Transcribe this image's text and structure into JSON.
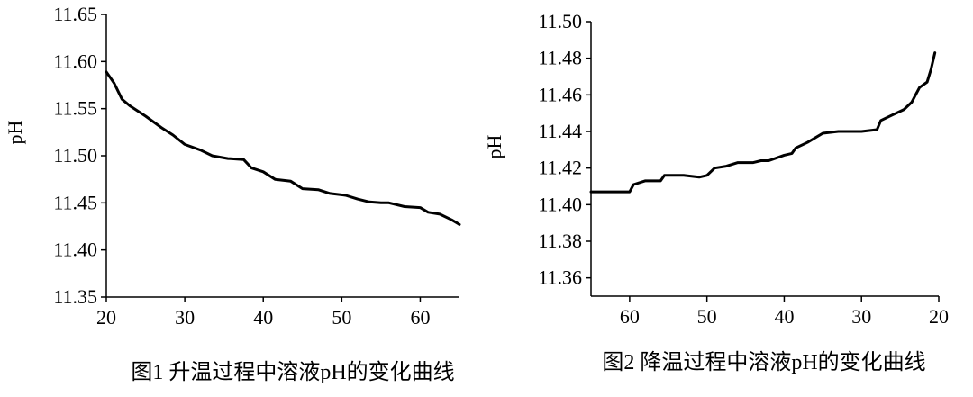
{
  "chart_data": [
    {
      "type": "line",
      "title": "图1 升温过程中溶液pH的变化曲线",
      "xlabel": "",
      "ylabel": "pH",
      "xlim": [
        20,
        65
      ],
      "ylim": [
        11.35,
        11.65
      ],
      "x_ticks": [
        "20",
        "30",
        "40",
        "50",
        "60"
      ],
      "x_tick_values": [
        20,
        30,
        40,
        50,
        60
      ],
      "y_ticks": [
        "11.35",
        "11.40",
        "11.45",
        "11.50",
        "11.55",
        "11.60",
        "11.65"
      ],
      "y_tick_values": [
        11.35,
        11.4,
        11.45,
        11.5,
        11.55,
        11.6,
        11.65
      ],
      "x_reversed": false,
      "grid": false,
      "series": [
        {
          "x": [
            20,
            21,
            22,
            23,
            25,
            27,
            28.5,
            30,
            32,
            33.5,
            35.5,
            37.5,
            38.5,
            40,
            41.5,
            43.5,
            45,
            47,
            48.5,
            50.5,
            52,
            53.5,
            55,
            56,
            58,
            60,
            61,
            62.5,
            64,
            65
          ],
          "y": [
            11.589,
            11.577,
            11.56,
            11.553,
            11.542,
            11.53,
            11.522,
            11.512,
            11.506,
            11.5,
            11.497,
            11.496,
            11.487,
            11.483,
            11.475,
            11.473,
            11.465,
            11.464,
            11.46,
            11.458,
            11.454,
            11.451,
            11.45,
            11.45,
            11.446,
            11.445,
            11.44,
            11.438,
            11.432,
            11.427
          ]
        }
      ]
    },
    {
      "type": "line",
      "title": "图2 降温过程中溶液pH的变化曲线",
      "xlabel": "",
      "ylabel": "pH",
      "xlim": [
        65,
        20
      ],
      "ylim": [
        11.35,
        11.5
      ],
      "x_ticks": [
        "60",
        "50",
        "40",
        "30",
        "20"
      ],
      "x_tick_values": [
        60,
        50,
        40,
        30,
        20
      ],
      "y_ticks": [
        "11.36",
        "11.38",
        "11.40",
        "11.42",
        "11.44",
        "11.46",
        "11.48",
        "11.50"
      ],
      "y_tick_values": [
        11.36,
        11.38,
        11.4,
        11.42,
        11.44,
        11.46,
        11.48,
        11.5
      ],
      "x_reversed": true,
      "grid": false,
      "series": [
        {
          "x": [
            65,
            62,
            60,
            59.5,
            58,
            56,
            55.5,
            53,
            51,
            50,
            49,
            47.5,
            46,
            44,
            43,
            42,
            40,
            39,
            38.5,
            37,
            35,
            33,
            30,
            28,
            27.5,
            26,
            24.5,
            23.5,
            22.5,
            21.5,
            21,
            20.5
          ],
          "y": [
            11.407,
            11.407,
            11.407,
            11.411,
            11.413,
            11.413,
            11.416,
            11.416,
            11.415,
            11.416,
            11.42,
            11.421,
            11.423,
            11.423,
            11.424,
            11.424,
            11.427,
            11.428,
            11.431,
            11.434,
            11.439,
            11.44,
            11.44,
            11.441,
            11.446,
            11.449,
            11.452,
            11.456,
            11.464,
            11.467,
            11.474,
            11.483
          ]
        }
      ]
    }
  ]
}
